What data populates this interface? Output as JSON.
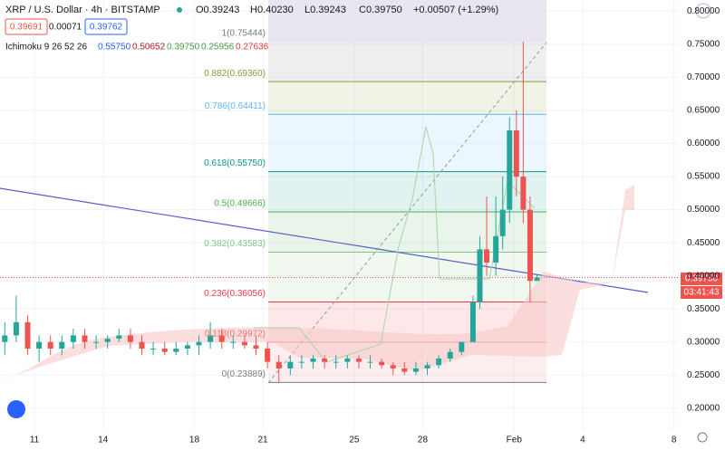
{
  "header": {
    "symbol": "XRP / U.S. Dollar · 4h · BITSTAMP",
    "o": "O0.39243",
    "h": "H0.40230",
    "l": "L0.39243",
    "c": "C0.39750",
    "change": "+0.00507 (+1.29%)",
    "sell": "0.39691",
    "spread": "0.00071",
    "buy": "0.39762",
    "indicator": "Ichimoku 9 26 52 26",
    "ind_values": [
      "0.55750",
      "0.50652",
      "0.39750",
      "0.25956",
      "0.27636"
    ],
    "last_price": "0.39750",
    "countdown": "03:41:43"
  },
  "chart_data": {
    "type": "candlestick",
    "x": [
      9.7,
      10.2,
      10.7,
      11.2,
      11.7,
      12.2,
      12.7,
      13.2,
      13.7,
      14.2,
      14.7,
      15.2,
      15.7,
      16.2,
      16.7,
      17.2,
      17.7,
      18.2,
      18.7,
      19.2,
      19.7,
      20.2,
      20.7,
      21.2,
      21.7,
      22.2,
      22.7,
      23.2,
      23.7,
      24.2,
      24.7,
      25.2,
      25.7,
      26.2,
      26.7,
      27.2,
      27.7,
      28.2,
      28.7,
      29.2,
      29.7,
      30.2,
      30.5,
      30.8,
      31.2,
      31.5,
      31.8,
      32.1,
      32.4,
      32.7,
      33.0
    ],
    "open": [
      0.3,
      0.31,
      0.33,
      0.29,
      0.3,
      0.29,
      0.3,
      0.31,
      0.3,
      0.3,
      0.305,
      0.31,
      0.3,
      0.29,
      0.29,
      0.285,
      0.29,
      0.295,
      0.3,
      0.31,
      0.3,
      0.3,
      0.295,
      0.29,
      0.27,
      0.26,
      0.27,
      0.27,
      0.275,
      0.27,
      0.27,
      0.275,
      0.27,
      0.27,
      0.265,
      0.26,
      0.255,
      0.26,
      0.265,
      0.275,
      0.285,
      0.3,
      0.36,
      0.44,
      0.42,
      0.46,
      0.5,
      0.62,
      0.55,
      0.5,
      0.39243
    ],
    "high": [
      0.33,
      0.37,
      0.34,
      0.31,
      0.31,
      0.31,
      0.32,
      0.32,
      0.31,
      0.31,
      0.32,
      0.32,
      0.31,
      0.3,
      0.3,
      0.3,
      0.3,
      0.31,
      0.33,
      0.32,
      0.31,
      0.31,
      0.31,
      0.3,
      0.28,
      0.28,
      0.28,
      0.28,
      0.28,
      0.28,
      0.28,
      0.28,
      0.28,
      0.275,
      0.27,
      0.27,
      0.27,
      0.27,
      0.28,
      0.29,
      0.3,
      0.37,
      0.46,
      0.52,
      0.52,
      0.55,
      0.64,
      0.65,
      0.754,
      0.52,
      0.4023
    ],
    "low": [
      0.28,
      0.3,
      0.28,
      0.27,
      0.28,
      0.28,
      0.29,
      0.29,
      0.29,
      0.29,
      0.3,
      0.29,
      0.28,
      0.28,
      0.28,
      0.28,
      0.28,
      0.28,
      0.29,
      0.29,
      0.29,
      0.29,
      0.28,
      0.26,
      0.239,
      0.25,
      0.26,
      0.26,
      0.26,
      0.26,
      0.26,
      0.26,
      0.26,
      0.26,
      0.25,
      0.25,
      0.25,
      0.25,
      0.26,
      0.27,
      0.28,
      0.3,
      0.35,
      0.4,
      0.4,
      0.44,
      0.48,
      0.52,
      0.48,
      0.36,
      0.39243
    ],
    "close": [
      0.31,
      0.33,
      0.29,
      0.3,
      0.29,
      0.3,
      0.31,
      0.3,
      0.3,
      0.305,
      0.31,
      0.3,
      0.29,
      0.29,
      0.285,
      0.29,
      0.295,
      0.3,
      0.31,
      0.3,
      0.3,
      0.295,
      0.29,
      0.27,
      0.26,
      0.27,
      0.27,
      0.275,
      0.27,
      0.27,
      0.275,
      0.27,
      0.27,
      0.265,
      0.26,
      0.255,
      0.26,
      0.265,
      0.275,
      0.285,
      0.3,
      0.36,
      0.44,
      0.42,
      0.46,
      0.5,
      0.62,
      0.55,
      0.5,
      0.39243,
      0.3975
    ],
    "up_color": "#26a69a",
    "down_color": "#ef5350",
    "xlim": [
      9.49,
      39.25
    ],
    "xticks": [
      11,
      14,
      18,
      21,
      25,
      28,
      {
        "value": 32,
        "label": "Feb"
      },
      {
        "value": 35,
        "label": "4"
      },
      {
        "value": 39,
        "label": "8"
      }
    ],
    "ylim": [
      0.16,
      0.817
    ],
    "yticks": [
      {
        "value": 0.2,
        "label": "0.20000"
      },
      {
        "value": 0.25,
        "label": "0.25000"
      },
      {
        "value": 0.3,
        "label": "0.30000"
      },
      {
        "value": 0.35,
        "label": "0.35000"
      },
      {
        "value": 0.4,
        "label": "0.40000"
      },
      {
        "value": 0.45,
        "label": "0.45000"
      },
      {
        "value": 0.5,
        "label": "0.50000"
      },
      {
        "value": 0.55,
        "label": "0.55000"
      },
      {
        "value": 0.6,
        "label": "0.60000"
      },
      {
        "value": 0.65,
        "label": "0.65000"
      },
      {
        "value": 0.7,
        "label": "0.70000"
      },
      {
        "value": 0.75,
        "label": "0.75000"
      },
      {
        "value": 0.8,
        "label": "0.80000"
      }
    ],
    "fib_levels": [
      {
        "value": 0.75444,
        "label": "1(0.75444)",
        "color": "#787b86"
      },
      {
        "value": 0.6936,
        "label": "0.882(0.69360)",
        "color": "#8a9a3a"
      },
      {
        "value": 0.64411,
        "label": "0.786(0.64411)",
        "color": "#64b5f6"
      },
      {
        "value": 0.5575,
        "label": "0.618(0.55750)",
        "color": "#089981"
      },
      {
        "value": 0.49666,
        "label": "0.5(0.49666)",
        "color": "#4caf50"
      },
      {
        "value": 0.43583,
        "label": "0.382(0.43583)",
        "color": "#81c784"
      },
      {
        "value": 0.36056,
        "label": "0.236(0.36056)",
        "color": "#f23645"
      },
      {
        "value": 0.29972,
        "label": "0.118(0.29972)",
        "color": "#e57373"
      },
      {
        "value": 0.23889,
        "label": "0(0.23889)",
        "color": "#787b86"
      }
    ]
  }
}
